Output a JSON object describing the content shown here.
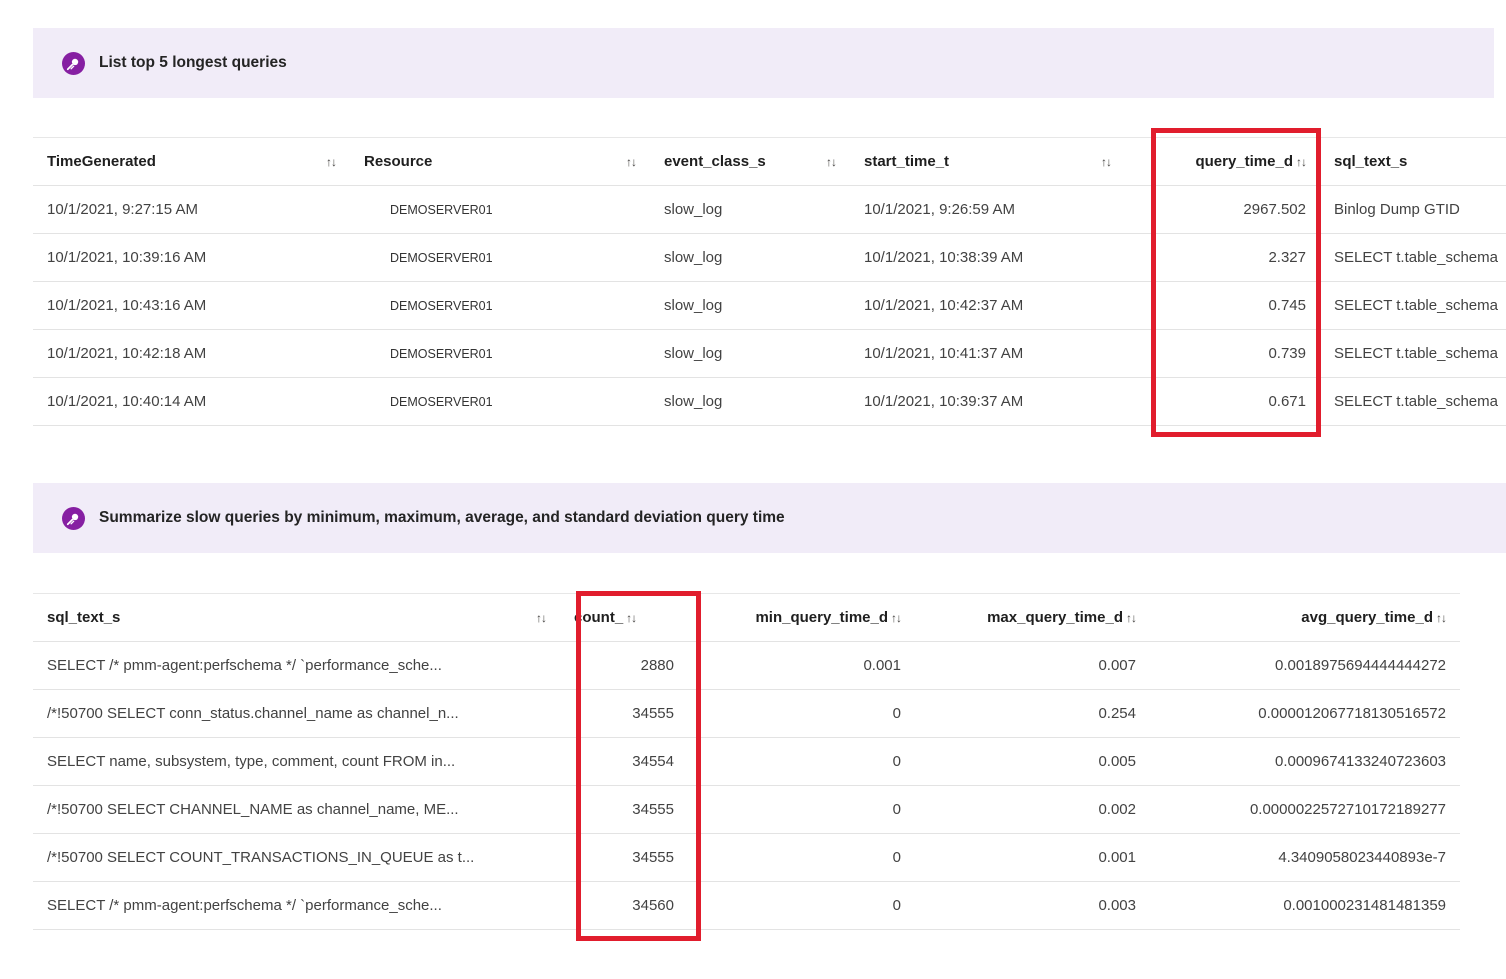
{
  "colors": {
    "banner_bg": "#f1ecf8",
    "icon_bg": "#861fa2",
    "highlight_red": "#e11d2d",
    "table_border": "#e3e3e3"
  },
  "sort_icon": "↑↓",
  "prompt1": {
    "text": "List top 5 longest queries"
  },
  "prompt2": {
    "text": "Summarize slow queries by minimum, maximum, average, and standard deviation query time"
  },
  "table1": {
    "headers": [
      "TimeGenerated",
      "Resource",
      "event_class_s",
      "start_time_t",
      "query_time_d",
      "sql_text_s"
    ],
    "rows": [
      [
        "10/1/2021, 9:27:15 AM",
        "DEMOSERVER01",
        "slow_log",
        "10/1/2021, 9:26:59 AM",
        "2967.502",
        "Binlog Dump GTID"
      ],
      [
        "10/1/2021, 10:39:16 AM",
        "DEMOSERVER01",
        "slow_log",
        "10/1/2021, 10:38:39 AM",
        "2.327",
        "SELECT t.table_schema"
      ],
      [
        "10/1/2021, 10:43:16 AM",
        "DEMOSERVER01",
        "slow_log",
        "10/1/2021, 10:42:37 AM",
        "0.745",
        "SELECT t.table_schema"
      ],
      [
        "10/1/2021, 10:42:18 AM",
        "DEMOSERVER01",
        "slow_log",
        "10/1/2021, 10:41:37 AM",
        "0.739",
        "SELECT t.table_schema"
      ],
      [
        "10/1/2021, 10:40:14 AM",
        "DEMOSERVER01",
        "slow_log",
        "10/1/2021, 10:39:37 AM",
        "0.671",
        "SELECT t.table_schema"
      ]
    ]
  },
  "table2": {
    "headers": [
      "sql_text_s",
      "count_",
      "min_query_time_d",
      "max_query_time_d",
      "avg_query_time_d"
    ],
    "rows": [
      [
        "SELECT /* pmm-agent:perfschema */ `performance_sche...",
        "2880",
        "0.001",
        "0.007",
        "0.0018975694444444272"
      ],
      [
        "/*!50700 SELECT conn_status.channel_name as channel_n...",
        "34555",
        "0",
        "0.254",
        "0.000012067718130516572"
      ],
      [
        "SELECT name, subsystem, type, comment, count FROM in...",
        "34554",
        "0",
        "0.005",
        "0.0009674133240723603"
      ],
      [
        "/*!50700 SELECT CHANNEL_NAME as channel_name, ME...",
        "34555",
        "0",
        "0.002",
        "0.0000022572710172189277"
      ],
      [
        "/*!50700 SELECT COUNT_TRANSACTIONS_IN_QUEUE as t...",
        "34555",
        "0",
        "0.001",
        "4.3409058023440893e-7"
      ],
      [
        "SELECT /* pmm-agent:perfschema */ `performance_sche...",
        "34560",
        "0",
        "0.003",
        "0.001000231481481359"
      ]
    ]
  }
}
